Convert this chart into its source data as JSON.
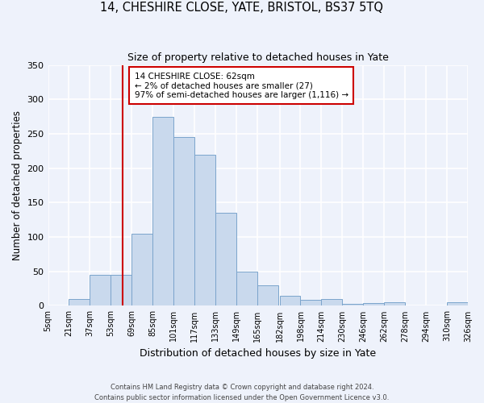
{
  "title": "14, CHESHIRE CLOSE, YATE, BRISTOL, BS37 5TQ",
  "subtitle": "Size of property relative to detached houses in Yate",
  "xlabel": "Distribution of detached houses by size in Yate",
  "ylabel": "Number of detached properties",
  "footer_line1": "Contains HM Land Registry data © Crown copyright and database right 2024.",
  "footer_line2": "Contains public sector information licensed under the Open Government Licence v3.0.",
  "annotation_line1": "14 CHESHIRE CLOSE: 62sqm",
  "annotation_line2": "← 2% of detached houses are smaller (27)",
  "annotation_line3": "97% of semi-detached houses are larger (1,116) →",
  "bar_color": "#c9d9ed",
  "bar_edge_color": "#7ba4cc",
  "red_line_x": 62,
  "annotation_box_color": "#ffffff",
  "annotation_box_edge": "#cc0000",
  "bins": [
    5,
    21,
    37,
    53,
    69,
    85,
    101,
    117,
    133,
    149,
    165,
    182,
    198,
    214,
    230,
    246,
    262,
    278,
    294,
    310,
    326
  ],
  "bin_labels": [
    "5sqm",
    "21sqm",
    "37sqm",
    "53sqm",
    "69sqm",
    "85sqm",
    "101sqm",
    "117sqm",
    "133sqm",
    "149sqm",
    "165sqm",
    "182sqm",
    "198sqm",
    "214sqm",
    "230sqm",
    "246sqm",
    "262sqm",
    "278sqm",
    "294sqm",
    "310sqm",
    "326sqm"
  ],
  "counts": [
    0,
    10,
    45,
    45,
    105,
    275,
    245,
    220,
    135,
    50,
    30,
    15,
    9,
    10,
    3,
    4,
    5,
    0,
    0,
    5
  ],
  "ylim": [
    0,
    350
  ],
  "yticks": [
    0,
    50,
    100,
    150,
    200,
    250,
    300,
    350
  ],
  "background_color": "#eef2fb",
  "plot_bg_color": "#eef2fb",
  "grid_color": "#ffffff"
}
